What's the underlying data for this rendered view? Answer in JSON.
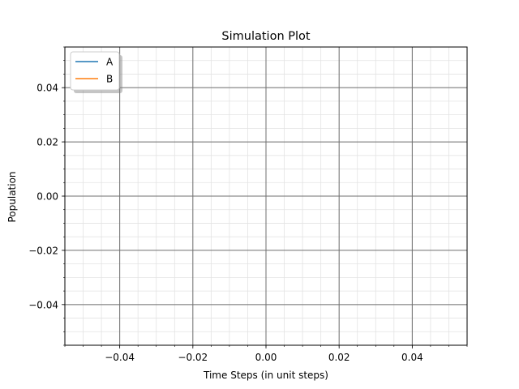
{
  "chart_data": {
    "type": "line",
    "title": "Simulation Plot",
    "xlabel": "Time Steps (in unit steps)",
    "ylabel": "Population",
    "xlim": [
      -0.055,
      0.055
    ],
    "ylim": [
      -0.055,
      0.055
    ],
    "xticks": [
      -0.04,
      -0.02,
      0.0,
      0.02,
      0.04
    ],
    "xtick_labels": [
      "−0.04",
      "−0.02",
      "0.00",
      "0.02",
      "0.04"
    ],
    "yticks": [
      -0.04,
      -0.02,
      0.0,
      0.02,
      0.04
    ],
    "ytick_labels": [
      "−0.04",
      "−0.02",
      "0.00",
      "0.02",
      "0.04"
    ],
    "minor_step": 0.005,
    "grid": true,
    "legend_position": "top-left",
    "series": [
      {
        "name": "A",
        "color": "#1f77b4",
        "x": [],
        "y": []
      },
      {
        "name": "B",
        "color": "#ff7f0e",
        "x": [],
        "y": []
      }
    ]
  }
}
